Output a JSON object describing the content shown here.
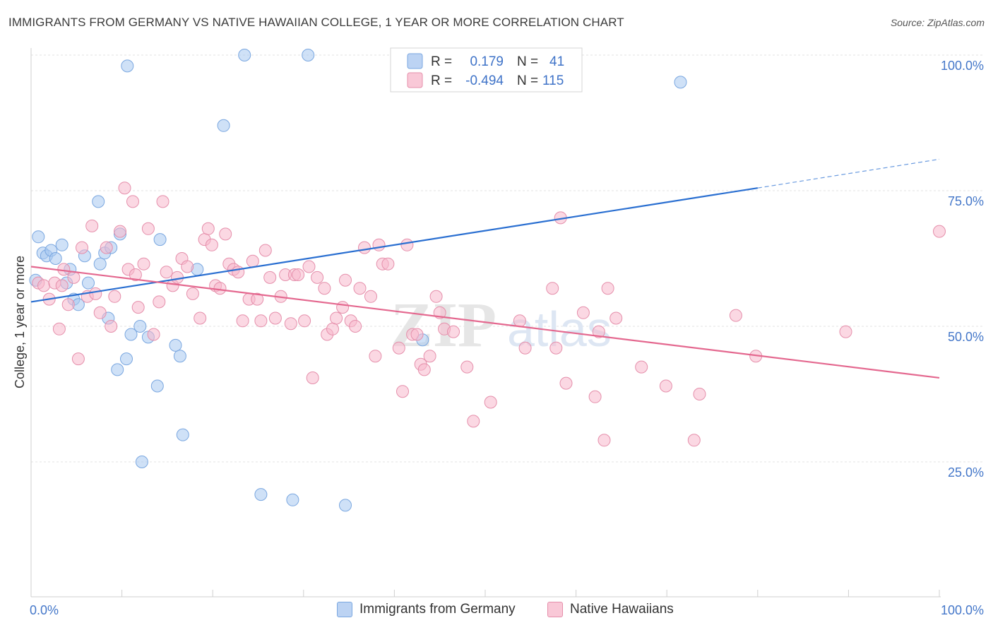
{
  "header": {
    "title": "IMMIGRANTS FROM GERMANY VS NATIVE HAWAIIAN COLLEGE, 1 YEAR OR MORE CORRELATION CHART",
    "source": "Source: ZipAtlas.com"
  },
  "watermark": {
    "zip": "ZIP",
    "atlas": "atlas"
  },
  "legend_box": {
    "rows": [
      {
        "r_label": "R =",
        "r_value": "0.179",
        "n_label": "N =",
        "n_value": "41"
      },
      {
        "r_label": "R =",
        "r_value": "-0.494",
        "n_label": "N =",
        "n_value": "115"
      }
    ]
  },
  "chart_data": {
    "type": "scatter",
    "title": "IMMIGRANTS FROM GERMANY VS NATIVE HAWAIIAN COLLEGE, 1 YEAR OR MORE CORRELATION CHART",
    "xlabel": "",
    "ylabel": "College, 1 year or more",
    "xlim": [
      0,
      100
    ],
    "ylim": [
      0,
      100
    ],
    "x_tick_labels": [
      "0.0%",
      "100.0%"
    ],
    "y_tick_values": [
      25,
      50,
      75,
      100
    ],
    "y_tick_labels": [
      "25.0%",
      "50.0%",
      "75.0%",
      "100.0%"
    ],
    "grid": "horizontal dashed",
    "legend_position": "bottom",
    "colors": {
      "blue_fill": "#a8c8f0",
      "blue_stroke": "#7aa7e0",
      "blue_line": "#2a6fd1",
      "pink_fill": "#f7b8cc",
      "pink_stroke": "#e58fab",
      "pink_line": "#e4688f",
      "accent_text": "#4477c9"
    },
    "series": [
      {
        "name": "Immigrants from Germany",
        "color": "#a8c8f0",
        "points": [
          [
            0.5,
            58.5
          ],
          [
            0.8,
            66.5
          ],
          [
            1.3,
            63.5
          ],
          [
            1.7,
            63
          ],
          [
            2.2,
            64
          ],
          [
            2.7,
            62.5
          ],
          [
            3.4,
            65
          ],
          [
            3.9,
            58
          ],
          [
            4.3,
            60.5
          ],
          [
            4.7,
            55
          ],
          [
            5.2,
            54
          ],
          [
            5.9,
            63
          ],
          [
            6.3,
            58
          ],
          [
            7.4,
            73
          ],
          [
            7.6,
            61.5
          ],
          [
            8.1,
            63.5
          ],
          [
            8.5,
            51.5
          ],
          [
            8.8,
            64.5
          ],
          [
            9.5,
            42
          ],
          [
            9.8,
            67
          ],
          [
            10.5,
            44
          ],
          [
            11.0,
            48.5
          ],
          [
            12.0,
            50
          ],
          [
            12.2,
            25
          ],
          [
            12.9,
            48
          ],
          [
            13.9,
            39
          ],
          [
            14.2,
            66
          ],
          [
            15.9,
            46.5
          ],
          [
            16.4,
            44.5
          ],
          [
            16.7,
            30
          ],
          [
            18.3,
            60.5
          ],
          [
            21.2,
            87
          ],
          [
            23.5,
            100
          ],
          [
            25.3,
            19
          ],
          [
            28.8,
            18
          ],
          [
            30.5,
            100
          ],
          [
            34.6,
            17
          ],
          [
            40.8,
            98
          ],
          [
            43.1,
            47.5
          ],
          [
            71.5,
            95
          ],
          [
            10.6,
            98
          ]
        ],
        "trendline": {
          "x": [
            0,
            80
          ],
          "y": [
            54.5,
            75.5
          ],
          "dashed_extension": {
            "x": [
              80,
              100
            ],
            "y": [
              75.5,
              80.8
            ]
          }
        }
      },
      {
        "name": "Native Hawaiians",
        "color": "#f7b8cc",
        "points": [
          [
            0.8,
            58
          ],
          [
            1.4,
            57.5
          ],
          [
            2.0,
            55
          ],
          [
            2.6,
            58
          ],
          [
            3.1,
            49.5
          ],
          [
            3.6,
            60.5
          ],
          [
            4.1,
            54
          ],
          [
            4.7,
            59
          ],
          [
            5.2,
            44
          ],
          [
            5.6,
            64.5
          ],
          [
            6.2,
            55.5
          ],
          [
            6.7,
            68.5
          ],
          [
            7.1,
            56
          ],
          [
            7.6,
            52.5
          ],
          [
            8.3,
            64.5
          ],
          [
            8.8,
            50
          ],
          [
            9.2,
            55.5
          ],
          [
            9.8,
            67.5
          ],
          [
            10.3,
            75.5
          ],
          [
            10.7,
            60.5
          ],
          [
            11.2,
            73
          ],
          [
            11.8,
            53.5
          ],
          [
            12.4,
            61.5
          ],
          [
            12.9,
            68
          ],
          [
            13.5,
            48.5
          ],
          [
            14.1,
            54.5
          ],
          [
            14.5,
            73
          ],
          [
            14.9,
            60
          ],
          [
            15.6,
            57.5
          ],
          [
            16.1,
            59
          ],
          [
            16.6,
            62.5
          ],
          [
            17.2,
            61
          ],
          [
            17.8,
            56
          ],
          [
            18.6,
            51.5
          ],
          [
            19.1,
            66
          ],
          [
            19.5,
            68
          ],
          [
            19.9,
            65
          ],
          [
            20.3,
            57.5
          ],
          [
            20.8,
            57
          ],
          [
            21.4,
            67
          ],
          [
            21.8,
            61.5
          ],
          [
            22.3,
            60.5
          ],
          [
            22.8,
            60
          ],
          [
            23.3,
            51
          ],
          [
            24.0,
            55
          ],
          [
            24.4,
            62
          ],
          [
            24.9,
            55
          ],
          [
            25.3,
            51
          ],
          [
            25.8,
            64
          ],
          [
            26.3,
            59
          ],
          [
            26.9,
            51.5
          ],
          [
            27.5,
            55.5
          ],
          [
            28.0,
            59.5
          ],
          [
            28.6,
            50.5
          ],
          [
            29.0,
            59.5
          ],
          [
            29.4,
            59.5
          ],
          [
            30.1,
            51
          ],
          [
            30.6,
            61
          ],
          [
            31.0,
            40.5
          ],
          [
            31.5,
            59
          ],
          [
            32.3,
            57
          ],
          [
            32.6,
            48.5
          ],
          [
            33.2,
            49.5
          ],
          [
            33.6,
            51.5
          ],
          [
            34.3,
            53.5
          ],
          [
            34.6,
            58.5
          ],
          [
            35.2,
            51
          ],
          [
            35.7,
            50
          ],
          [
            36.2,
            57
          ],
          [
            36.7,
            64.5
          ],
          [
            37.4,
            55.5
          ],
          [
            37.9,
            44.5
          ],
          [
            38.3,
            65
          ],
          [
            38.7,
            61.5
          ],
          [
            39.3,
            61.5
          ],
          [
            40.5,
            46
          ],
          [
            40.9,
            38
          ],
          [
            41.4,
            65
          ],
          [
            42.0,
            48.5
          ],
          [
            42.5,
            48.5
          ],
          [
            42.9,
            43
          ],
          [
            43.3,
            42
          ],
          [
            43.9,
            44.5
          ],
          [
            44.6,
            55.5
          ],
          [
            45.0,
            52.5
          ],
          [
            45.5,
            49.5
          ],
          [
            46.5,
            49
          ],
          [
            48.0,
            42.5
          ],
          [
            48.7,
            32.5
          ],
          [
            50.6,
            36
          ],
          [
            53.8,
            51
          ],
          [
            54.4,
            46
          ],
          [
            57.4,
            57
          ],
          [
            57.8,
            46
          ],
          [
            58.3,
            70
          ],
          [
            58.9,
            39.5
          ],
          [
            60.8,
            52.5
          ],
          [
            62.1,
            37
          ],
          [
            62.5,
            49
          ],
          [
            63.1,
            29
          ],
          [
            63.5,
            57
          ],
          [
            64.4,
            51.5
          ],
          [
            67.2,
            42.5
          ],
          [
            69.9,
            39
          ],
          [
            73.0,
            29
          ],
          [
            73.6,
            37.5
          ],
          [
            77.6,
            52
          ],
          [
            79.8,
            44.5
          ],
          [
            89.7,
            49
          ],
          [
            100.0,
            67.5
          ],
          [
            3.4,
            57.5
          ],
          [
            11.5,
            59.5
          ]
        ],
        "trendline": {
          "x": [
            0,
            100
          ],
          "y": [
            61,
            40.5
          ]
        }
      }
    ]
  },
  "bottom_legend": {
    "items": [
      {
        "label": "Immigrants from Germany",
        "color": "#a8c8f0"
      },
      {
        "label": "Native Hawaiians",
        "color": "#f7b8cc"
      }
    ]
  }
}
